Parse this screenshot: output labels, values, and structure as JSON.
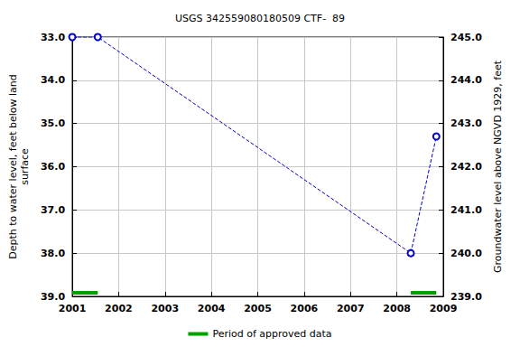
{
  "chart_data": {
    "type": "line",
    "title": "USGS 342559080180509 CTF-  89",
    "y_label": "Depth to water level, feet below land\nsurface",
    "y2_label": "Groundwater level above NGVD 1929, feet",
    "x": [
      2001.0,
      2001.55,
      2008.3,
      2008.85
    ],
    "series": [
      {
        "color": "#0000cc",
        "marker": "circle",
        "line_style": "dashed",
        "values": [
          33.0,
          33.0,
          38.0,
          35.3
        ]
      }
    ],
    "approved_periods": {
      "name": "Period of approved data",
      "color": "#00a000",
      "ranges": [
        [
          2001.0,
          2001.55
        ],
        [
          2008.3,
          2008.85
        ]
      ]
    },
    "xlim": [
      2001,
      2009
    ],
    "xticks": [
      2001,
      2002,
      2003,
      2004,
      2005,
      2006,
      2007,
      2008,
      2009
    ],
    "ylim": [
      33,
      39
    ],
    "yticks": [
      {
        "value": 33,
        "label": "33.0"
      },
      {
        "value": 34,
        "label": "34.0"
      },
      {
        "value": 35,
        "label": "35.0"
      },
      {
        "value": 36,
        "label": "36.0"
      },
      {
        "value": 37,
        "label": "37.0"
      },
      {
        "value": 38,
        "label": "38.0"
      },
      {
        "value": 39,
        "label": "39.0"
      }
    ],
    "y2lim": [
      239,
      245
    ],
    "y2ticks": [
      {
        "value": 239,
        "label": "239.0"
      },
      {
        "value": 240,
        "label": "240.0"
      },
      {
        "value": 241,
        "label": "241.0"
      },
      {
        "value": 242,
        "label": "242.0"
      },
      {
        "value": 243,
        "label": "243.0"
      },
      {
        "value": 244,
        "label": "244.0"
      },
      {
        "value": 245,
        "label": "245.0"
      }
    ],
    "grid": true,
    "legend": "bottom"
  }
}
